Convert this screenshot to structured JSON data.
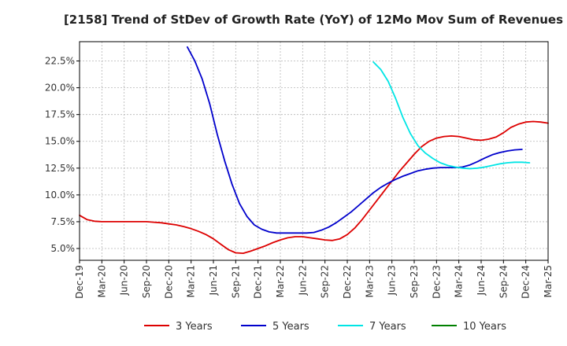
{
  "chart_data": {
    "type": "line",
    "title": "[2158]  Trend of StDev of Growth Rate (YoY) of 12Mo Mov Sum of Revenues",
    "xlabel": "",
    "ylabel": "",
    "x_ticks": [
      "Dec-19",
      "Mar-20",
      "Jun-20",
      "Sep-20",
      "Dec-20",
      "Mar-21",
      "Jun-21",
      "Sep-21",
      "Dec-21",
      "Mar-22",
      "Jun-22",
      "Sep-22",
      "Dec-22",
      "Mar-23",
      "Jun-23",
      "Sep-23",
      "Dec-23",
      "Mar-24",
      "Jun-24",
      "Sep-24",
      "Dec-24",
      "Mar-25"
    ],
    "y_ticks": [
      5.0,
      7.5,
      10.0,
      12.5,
      15.0,
      17.5,
      20.0,
      22.5
    ],
    "y_tick_labels": [
      "5.0%",
      "7.5%",
      "10.0%",
      "12.5%",
      "15.0%",
      "17.5%",
      "20.0%",
      "22.5%"
    ],
    "ylim": [
      3.9,
      24.3
    ],
    "x_range_months": [
      0,
      63
    ],
    "grid": true,
    "legend_position": "bottom",
    "series": [
      {
        "name": "3 Years",
        "color": "#dd0000",
        "points": [
          [
            0,
            8.1
          ],
          [
            1,
            7.7
          ],
          [
            2,
            7.55
          ],
          [
            3,
            7.5
          ],
          [
            4,
            7.5
          ],
          [
            5,
            7.5
          ],
          [
            6,
            7.5
          ],
          [
            7,
            7.5
          ],
          [
            8,
            7.5
          ],
          [
            9,
            7.5
          ],
          [
            10,
            7.45
          ],
          [
            11,
            7.4
          ],
          [
            12,
            7.3
          ],
          [
            13,
            7.2
          ],
          [
            14,
            7.05
          ],
          [
            15,
            6.85
          ],
          [
            16,
            6.6
          ],
          [
            17,
            6.3
          ],
          [
            18,
            5.9
          ],
          [
            19,
            5.4
          ],
          [
            20,
            4.9
          ],
          [
            21,
            4.6
          ],
          [
            22,
            4.55
          ],
          [
            23,
            4.75
          ],
          [
            24,
            5.0
          ],
          [
            25,
            5.25
          ],
          [
            26,
            5.55
          ],
          [
            27,
            5.8
          ],
          [
            28,
            6.0
          ],
          [
            29,
            6.1
          ],
          [
            30,
            6.1
          ],
          [
            31,
            6.0
          ],
          [
            32,
            5.9
          ],
          [
            33,
            5.8
          ],
          [
            34,
            5.75
          ],
          [
            35,
            5.9
          ],
          [
            36,
            6.3
          ],
          [
            37,
            6.9
          ],
          [
            38,
            7.7
          ],
          [
            39,
            8.6
          ],
          [
            40,
            9.5
          ],
          [
            41,
            10.4
          ],
          [
            42,
            11.3
          ],
          [
            43,
            12.2
          ],
          [
            44,
            13.0
          ],
          [
            45,
            13.8
          ],
          [
            46,
            14.5
          ],
          [
            47,
            15.0
          ],
          [
            48,
            15.3
          ],
          [
            49,
            15.45
          ],
          [
            50,
            15.5
          ],
          [
            51,
            15.45
          ],
          [
            52,
            15.3
          ],
          [
            53,
            15.15
          ],
          [
            54,
            15.1
          ],
          [
            55,
            15.2
          ],
          [
            56,
            15.4
          ],
          [
            57,
            15.8
          ],
          [
            58,
            16.3
          ],
          [
            59,
            16.6
          ],
          [
            60,
            16.8
          ],
          [
            61,
            16.85
          ],
          [
            62,
            16.8
          ],
          [
            63,
            16.7
          ]
        ]
      },
      {
        "name": "5 Years",
        "color": "#0000cc",
        "points": [
          [
            14.5,
            23.8
          ],
          [
            15.5,
            22.5
          ],
          [
            16.5,
            20.8
          ],
          [
            17.5,
            18.5
          ],
          [
            18.5,
            15.7
          ],
          [
            19.5,
            13.2
          ],
          [
            20.5,
            11.0
          ],
          [
            21.5,
            9.2
          ],
          [
            22.5,
            8.0
          ],
          [
            23.5,
            7.2
          ],
          [
            24.5,
            6.8
          ],
          [
            25.5,
            6.55
          ],
          [
            26.5,
            6.45
          ],
          [
            27.5,
            6.45
          ],
          [
            28.5,
            6.45
          ],
          [
            29.5,
            6.45
          ],
          [
            30.5,
            6.45
          ],
          [
            31.5,
            6.5
          ],
          [
            32.5,
            6.7
          ],
          [
            33.5,
            7.0
          ],
          [
            34.5,
            7.4
          ],
          [
            35.5,
            7.9
          ],
          [
            36.5,
            8.4
          ],
          [
            37.5,
            9.0
          ],
          [
            38.5,
            9.6
          ],
          [
            39.5,
            10.2
          ],
          [
            40.5,
            10.7
          ],
          [
            41.5,
            11.1
          ],
          [
            42.5,
            11.45
          ],
          [
            43.5,
            11.75
          ],
          [
            44.5,
            12.0
          ],
          [
            45.5,
            12.25
          ],
          [
            46.5,
            12.4
          ],
          [
            47.5,
            12.5
          ],
          [
            48.5,
            12.55
          ],
          [
            49.5,
            12.55
          ],
          [
            50.5,
            12.55
          ],
          [
            51.5,
            12.6
          ],
          [
            52.5,
            12.8
          ],
          [
            53.5,
            13.1
          ],
          [
            54.5,
            13.45
          ],
          [
            55.5,
            13.75
          ],
          [
            56.5,
            13.95
          ],
          [
            57.5,
            14.1
          ],
          [
            58.5,
            14.2
          ],
          [
            59.5,
            14.25
          ]
        ]
      },
      {
        "name": "7 Years",
        "color": "#00e5e5",
        "points": [
          [
            39.5,
            22.4
          ],
          [
            40.5,
            21.7
          ],
          [
            41.5,
            20.6
          ],
          [
            42.5,
            19.0
          ],
          [
            43.5,
            17.2
          ],
          [
            44.5,
            15.7
          ],
          [
            45.5,
            14.6
          ],
          [
            46.5,
            13.9
          ],
          [
            47.5,
            13.4
          ],
          [
            48.5,
            13.0
          ],
          [
            49.5,
            12.75
          ],
          [
            50.5,
            12.6
          ],
          [
            51.5,
            12.5
          ],
          [
            52.5,
            12.45
          ],
          [
            53.5,
            12.5
          ],
          [
            54.5,
            12.6
          ],
          [
            55.5,
            12.75
          ],
          [
            56.5,
            12.9
          ],
          [
            57.5,
            13.0
          ],
          [
            58.5,
            13.05
          ],
          [
            59.5,
            13.05
          ],
          [
            60.5,
            13.0
          ]
        ]
      },
      {
        "name": "10 Years",
        "color": "#008000",
        "points": []
      }
    ]
  }
}
